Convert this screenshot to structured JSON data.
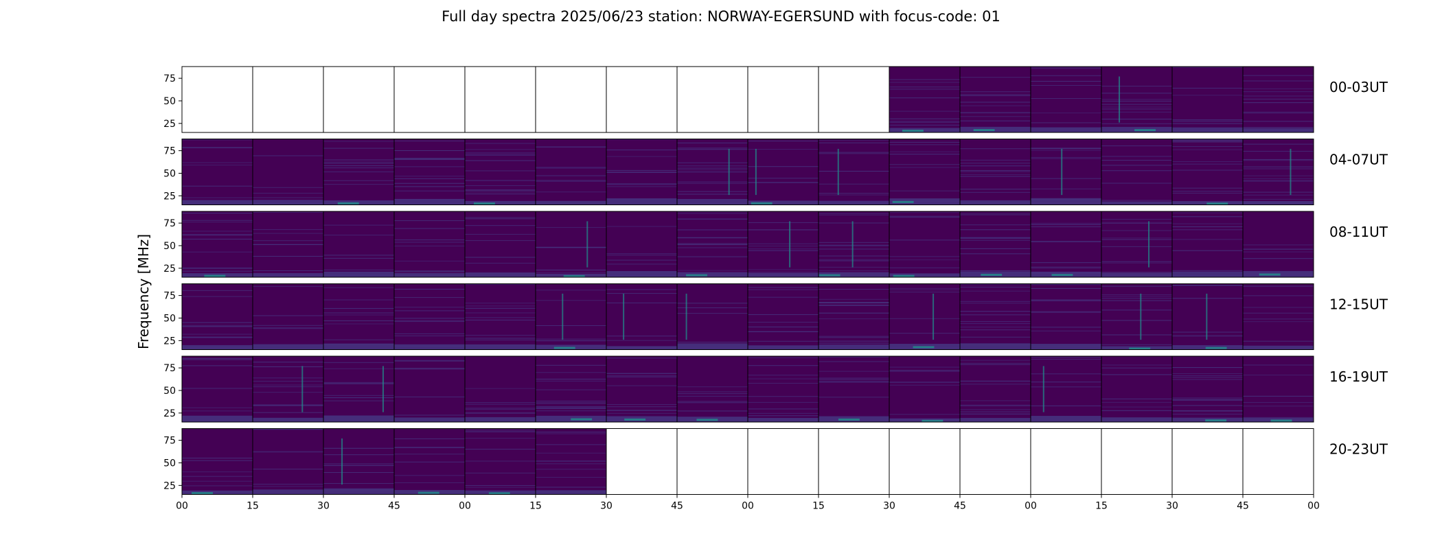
{
  "title": "Full day spectra 2025/06/23 station: NORWAY-EGERSUND with focus-code: 01",
  "colors": {
    "background": "#440154",
    "low": "#46327e",
    "mid": "#21918c",
    "high": "#fde725",
    "frame": "#000000",
    "empty": "#ffffff"
  },
  "chart_data": {
    "type": "heatmap",
    "title": "Full day spectra 2025/06/23 station: NORWAY-EGERSUND with focus-code: 01",
    "ylabel": "Frequency [MHz]",
    "ylim": [
      15,
      88
    ],
    "yticks": [
      25,
      50,
      75
    ],
    "xtick_labels": [
      "00",
      "15",
      "30",
      "45",
      "00",
      "15",
      "30",
      "45",
      "00",
      "15",
      "30",
      "45",
      "00",
      "15",
      "30",
      "45",
      "00"
    ],
    "row_labels": [
      "00-03UT",
      "04-07UT",
      "08-11UT",
      "12-15UT",
      "16-19UT",
      "20-23UT"
    ],
    "panels_per_row": 16,
    "panel_minutes": 15,
    "data_available": [
      [
        false,
        false,
        false,
        false,
        false,
        false,
        false,
        false,
        false,
        false,
        true,
        true,
        true,
        true,
        true,
        true
      ],
      [
        true,
        true,
        true,
        true,
        true,
        true,
        true,
        true,
        true,
        true,
        true,
        true,
        true,
        true,
        true,
        true
      ],
      [
        true,
        true,
        true,
        true,
        true,
        true,
        true,
        true,
        true,
        true,
        true,
        true,
        true,
        true,
        true,
        true
      ],
      [
        true,
        true,
        true,
        true,
        true,
        true,
        true,
        true,
        true,
        true,
        true,
        true,
        true,
        true,
        true,
        true
      ],
      [
        true,
        true,
        true,
        true,
        true,
        true,
        true,
        true,
        true,
        true,
        true,
        true,
        true,
        true,
        true,
        true
      ],
      [
        true,
        true,
        true,
        true,
        true,
        true,
        false,
        false,
        false,
        false,
        false,
        false,
        false,
        false,
        false,
        false
      ]
    ]
  }
}
